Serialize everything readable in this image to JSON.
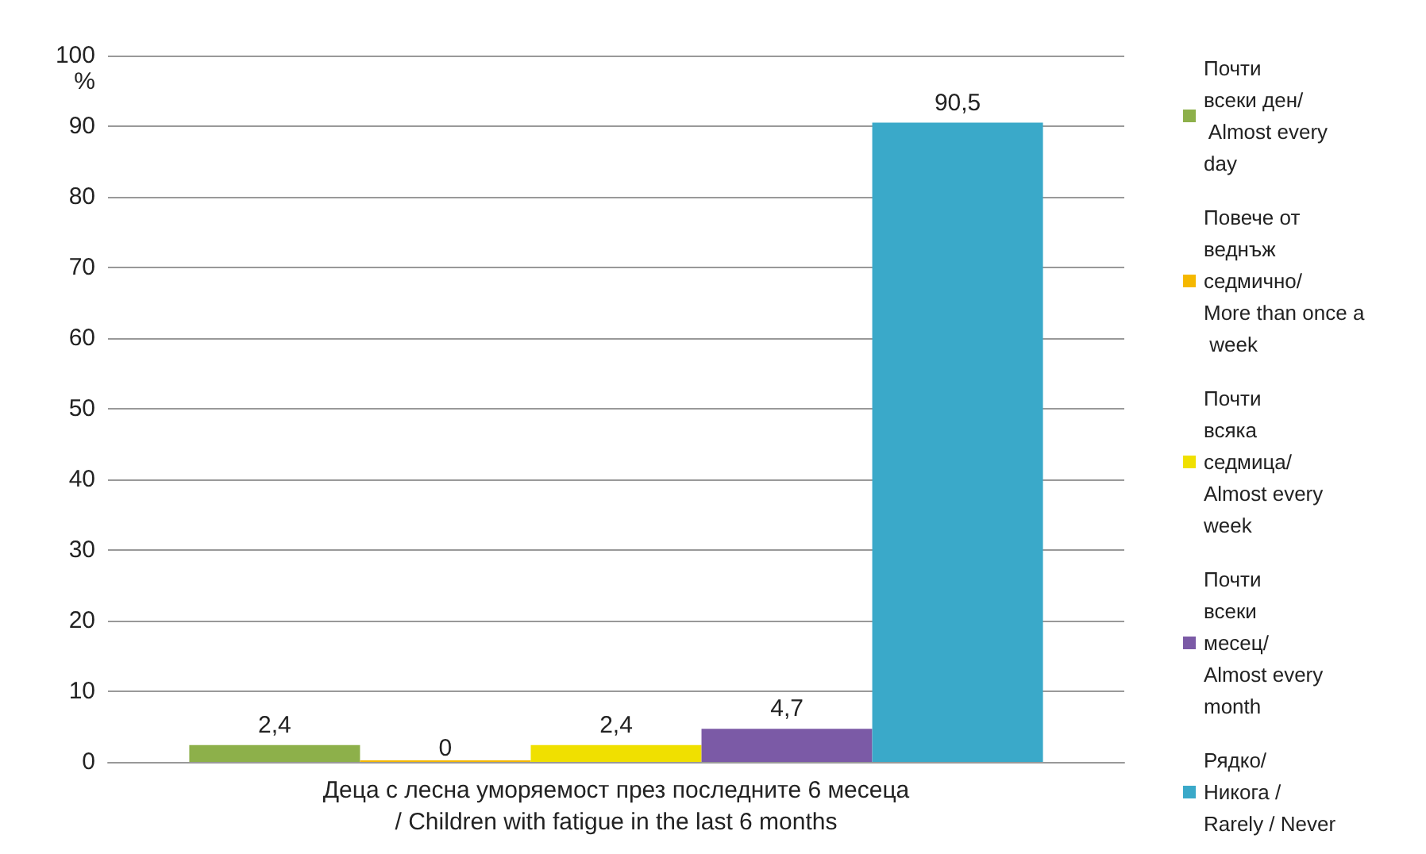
{
  "chart_data": {
    "type": "bar",
    "ylabel": "%",
    "categories": [
      "Деца с лесна уморяемост през последните 6 месеца/ Children with fatigue in the last 6 months"
    ],
    "series": [
      {
        "name": "Почти всеки ден/ Almost every day",
        "color": "#8db04a",
        "values": [
          2.4
        ],
        "value_labels": [
          "2,4"
        ]
      },
      {
        "name": "Повече от веднъж седмично/ More than once a week",
        "color": "#f5b800",
        "values": [
          0
        ],
        "value_labels": [
          "0"
        ]
      },
      {
        "name": "Почти всяка седмица/ Almost every week",
        "color": "#f0e000",
        "values": [
          2.4
        ],
        "value_labels": [
          "2,4"
        ]
      },
      {
        "name": "Почти всеки месец/ Almost every month",
        "color": "#7b5aa6",
        "values": [
          4.7
        ],
        "value_labels": [
          "4,7"
        ]
      },
      {
        "name": "Рядко/Никога / Rarely / Never",
        "color": "#3aa9c9",
        "values": [
          90.5
        ],
        "value_labels": [
          "90,5"
        ]
      }
    ],
    "ylim": [
      0,
      100
    ],
    "yticks": [
      0,
      10,
      20,
      30,
      40,
      50,
      60,
      70,
      80,
      90,
      100
    ],
    "grid": "y",
    "legend": "right"
  }
}
